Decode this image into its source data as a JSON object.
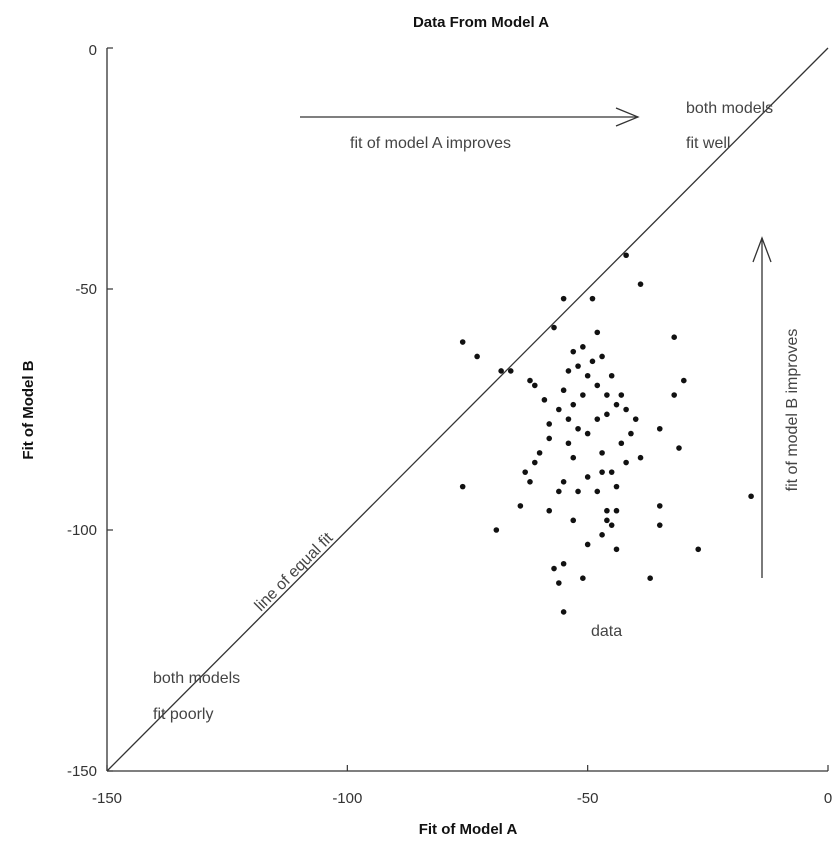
{
  "chart_data": {
    "type": "scatter",
    "title": "Data From Model A",
    "xlabel": "Fit of Model A",
    "ylabel": "Fit of Model B",
    "xlim": [
      -150,
      0
    ],
    "ylim": [
      -150,
      0
    ],
    "xticks": [
      "-150",
      "-100",
      "-50",
      "0"
    ],
    "yticks": [
      "-150",
      "-100",
      "-50",
      "0"
    ],
    "grid": false,
    "equal_fit_line": {
      "from": [
        -150,
        -150
      ],
      "to": [
        0,
        0
      ],
      "label": "line of equal fit"
    },
    "annotations": {
      "both_poorly_line1": "both models",
      "both_poorly_line2": "fit poorly",
      "both_well_line1": "both models",
      "both_well_line2": "fit well",
      "a_improves": "fit of model A improves",
      "b_improves": "fit of model B improves",
      "data_label": "data"
    },
    "series": [
      {
        "points": [
          [
            -76,
            -61
          ],
          [
            -73,
            -64
          ],
          [
            -68,
            -67
          ],
          [
            -66,
            -67
          ],
          [
            -62,
            -69
          ],
          [
            -61,
            -70
          ],
          [
            -59,
            -73
          ],
          [
            -57,
            -58
          ],
          [
            -55,
            -52
          ],
          [
            -49,
            -52
          ],
          [
            -42,
            -43
          ],
          [
            -39,
            -49
          ],
          [
            -32,
            -60
          ],
          [
            -30,
            -69
          ],
          [
            -32,
            -72
          ],
          [
            -35,
            -79
          ],
          [
            -31,
            -83
          ],
          [
            -16,
            -93
          ],
          [
            -35,
            -95
          ],
          [
            -35,
            -99
          ],
          [
            -27,
            -104
          ],
          [
            -37,
            -110
          ],
          [
            -76,
            -91
          ],
          [
            -69,
            -100
          ],
          [
            -64,
            -95
          ],
          [
            -58,
            -96
          ],
          [
            -57,
            -108
          ],
          [
            -56,
            -111
          ],
          [
            -55,
            -117
          ],
          [
            -55,
            -107
          ],
          [
            -51,
            -110
          ],
          [
            -50,
            -103
          ],
          [
            -47,
            -101
          ],
          [
            -44,
            -104
          ],
          [
            -53,
            -98
          ],
          [
            -48,
            -92
          ],
          [
            -46,
            -96
          ],
          [
            -45,
            -99
          ],
          [
            -44,
            -91
          ],
          [
            -45,
            -88
          ],
          [
            -50,
            -89
          ],
          [
            -55,
            -90
          ],
          [
            -56,
            -92
          ],
          [
            -53,
            -85
          ],
          [
            -60,
            -84
          ],
          [
            -61,
            -86
          ],
          [
            -63,
            -88
          ],
          [
            -62,
            -90
          ],
          [
            -58,
            -81
          ],
          [
            -54,
            -82
          ],
          [
            -52,
            -79
          ],
          [
            -50,
            -80
          ],
          [
            -48,
            -77
          ],
          [
            -46,
            -76
          ],
          [
            -44,
            -74
          ],
          [
            -43,
            -72
          ],
          [
            -42,
            -75
          ],
          [
            -40,
            -77
          ],
          [
            -41,
            -80
          ],
          [
            -43,
            -82
          ],
          [
            -42,
            -86
          ],
          [
            -39,
            -85
          ],
          [
            -47,
            -84
          ],
          [
            -46,
            -72
          ],
          [
            -48,
            -70
          ],
          [
            -50,
            -68
          ],
          [
            -52,
            -66
          ],
          [
            -51,
            -62
          ],
          [
            -53,
            -63
          ],
          [
            -54,
            -67
          ],
          [
            -55,
            -71
          ],
          [
            -53,
            -74
          ],
          [
            -54,
            -77
          ],
          [
            -56,
            -75
          ],
          [
            -58,
            -78
          ],
          [
            -51,
            -72
          ],
          [
            -49,
            -65
          ],
          [
            -47,
            -64
          ],
          [
            -48,
            -59
          ],
          [
            -45,
            -68
          ],
          [
            -47,
            -88
          ],
          [
            -52,
            -92
          ],
          [
            -44,
            -96
          ],
          [
            -46,
            -98
          ]
        ]
      }
    ]
  }
}
